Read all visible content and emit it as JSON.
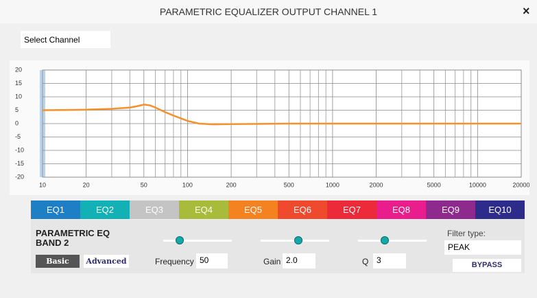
{
  "window": {
    "title": "PARAMETRIC EQUALIZER OUTPUT CHANNEL 1",
    "close": "×"
  },
  "select_channel": "Select Channel",
  "chart_data": {
    "type": "line",
    "x": [
      10,
      15,
      20,
      30,
      40,
      45,
      50,
      55,
      60,
      70,
      80,
      100,
      120,
      150,
      200,
      500,
      1000,
      20000
    ],
    "series": [
      {
        "color": "#f5902a",
        "values": [
          5,
          5.1,
          5.2,
          5.5,
          6,
          6.5,
          7.1,
          6.8,
          6,
          4.3,
          3,
          1,
          0,
          -0.3,
          -0.2,
          0,
          0,
          0
        ]
      }
    ],
    "xlim": [
      10,
      20000
    ],
    "ylim": [
      -20,
      20
    ],
    "xscale": "log",
    "xticks": [
      10,
      20,
      50,
      100,
      200,
      500,
      1000,
      2000,
      5000,
      10000,
      20000
    ],
    "xminor": [
      30,
      40,
      60,
      70,
      80,
      90,
      300,
      400,
      600,
      700,
      800,
      900,
      3000,
      4000,
      6000,
      7000,
      8000,
      9000
    ],
    "yticks": [
      -20,
      -15,
      -10,
      -5,
      0,
      5,
      10,
      15,
      20
    ],
    "grid": true
  },
  "tabs": [
    {
      "label": "EQ1",
      "color": "#1e7fc4"
    },
    {
      "label": "EQ2",
      "color": "#13b1b6"
    },
    {
      "label": "EQ3",
      "color": "#c4c4c4"
    },
    {
      "label": "EQ4",
      "color": "#a9bb3b"
    },
    {
      "label": "EQ5",
      "color": "#f58220"
    },
    {
      "label": "EQ6",
      "color": "#f04a2e"
    },
    {
      "label": "EQ7",
      "color": "#ec2a3a"
    },
    {
      "label": "EQ8",
      "color": "#e91e8c"
    },
    {
      "label": "EQ9",
      "color": "#8e2a8e"
    },
    {
      "label": "EQ10",
      "color": "#2e2c8a"
    }
  ],
  "band": {
    "title": "PARAMETRIC EQ BAND 2",
    "basic": "Basic",
    "advanced": "Advanced",
    "frequency_label": "Frequency",
    "frequency": "50",
    "gain_label": "Gain",
    "gain": "2.0",
    "q_label": "Q",
    "q": "3",
    "filter_type_label": "Filter type:",
    "filter_type": "PEAK",
    "bypass": "BYPASS"
  }
}
